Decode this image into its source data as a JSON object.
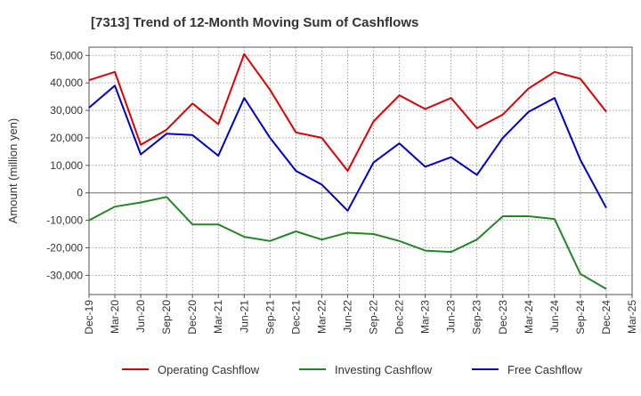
{
  "chart_data": {
    "type": "line",
    "title": "[7313]  Trend of 12-Month Moving Sum of Cashflows",
    "xlabel": "",
    "ylabel": "Amount (million yen)",
    "ylim": [
      -37000,
      53000
    ],
    "yticks": [
      -30000,
      -20000,
      -10000,
      0,
      10000,
      20000,
      30000,
      40000,
      50000
    ],
    "ytick_labels": [
      "-30,000",
      "-20,000",
      "-10,000",
      "0",
      "10,000",
      "20,000",
      "30,000",
      "40,000",
      "50,000"
    ],
    "categories": [
      "Dec-19",
      "Mar-20",
      "Jun-20",
      "Sep-20",
      "Dec-20",
      "Mar-21",
      "Jun-21",
      "Sep-21",
      "Dec-21",
      "Mar-22",
      "Jun-22",
      "Sep-22",
      "Dec-22",
      "Mar-23",
      "Jun-23",
      "Sep-23",
      "Dec-23",
      "Mar-24",
      "Jun-24",
      "Sep-24",
      "Dec-24",
      "Mar-25"
    ],
    "grid": true,
    "legend_position": "bottom",
    "series": [
      {
        "name": "Operating Cashflow",
        "color": "#dd0000",
        "values": [
          41000,
          44000,
          17500,
          23000,
          32500,
          25000,
          50500,
          37500,
          22000,
          20000,
          8000,
          26000,
          35500,
          30500,
          34500,
          23500,
          28500,
          38000,
          44000,
          41500,
          29500,
          null
        ]
      },
      {
        "name": "Investing Cashflow",
        "color": "#228822",
        "values": [
          -10000,
          -5000,
          -3500,
          -1500,
          -11500,
          -11500,
          -16000,
          -17500,
          -14000,
          -17000,
          -14500,
          -15000,
          -17500,
          -21000,
          -21500,
          -17000,
          -8500,
          -8500,
          -9500,
          -29500,
          -35000,
          null
        ]
      },
      {
        "name": "Free Cashflow",
        "color": "#0000cc",
        "values": [
          31000,
          39000,
          14000,
          21500,
          21000,
          13500,
          34500,
          20000,
          8000,
          3000,
          -6500,
          11000,
          18000,
          9500,
          13000,
          6500,
          20000,
          29500,
          34500,
          12000,
          -5500,
          null
        ]
      }
    ]
  }
}
